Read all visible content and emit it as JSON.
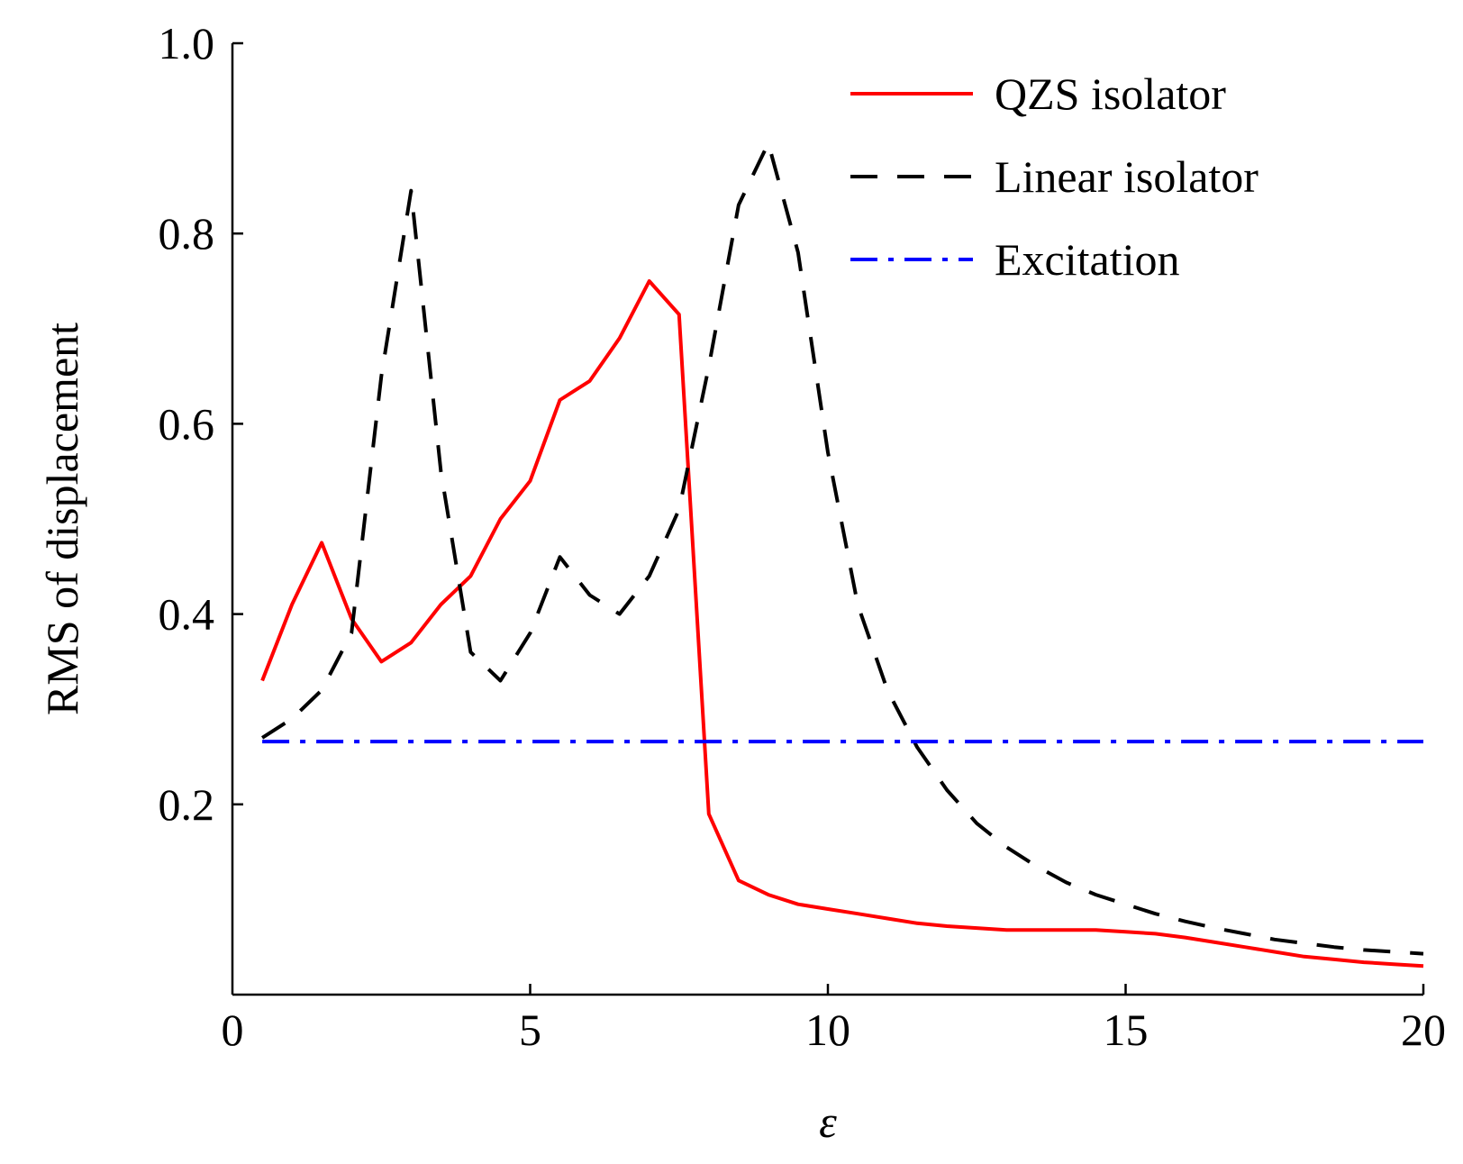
{
  "chart_data": {
    "type": "line",
    "title": "",
    "xlabel": "ε",
    "ylabel": "RMS of displacement",
    "xlim": [
      0,
      20
    ],
    "ylim": [
      0,
      1.0
    ],
    "xticks": [
      0,
      5,
      10,
      15,
      20
    ],
    "yticks": [
      0.2,
      0.4,
      0.6,
      0.8,
      1.0
    ],
    "xtick_labels": [
      "0",
      "5",
      "10",
      "15",
      "20"
    ],
    "ytick_labels": [
      "0.2",
      "0.4",
      "0.6",
      "0.8",
      "1.0"
    ],
    "grid": false,
    "legend_position": "top-right",
    "series": [
      {
        "name": "QZS isolator",
        "color": "#ff0000",
        "style": "solid",
        "x": [
          0.5,
          1.0,
          1.5,
          2.0,
          2.5,
          3.0,
          3.5,
          4.0,
          4.5,
          5.0,
          5.5,
          6.0,
          6.5,
          7.0,
          7.5,
          8.0,
          8.5,
          9.0,
          9.5,
          10.0,
          10.5,
          11.0,
          11.5,
          12.0,
          12.5,
          13.0,
          13.5,
          14.0,
          14.5,
          15.0,
          15.5,
          16.0,
          16.5,
          17.0,
          17.5,
          18.0,
          18.5,
          19.0,
          19.5,
          20.0
        ],
        "y": [
          0.33,
          0.41,
          0.475,
          0.395,
          0.35,
          0.37,
          0.41,
          0.44,
          0.5,
          0.54,
          0.625,
          0.645,
          0.69,
          0.75,
          0.715,
          0.19,
          0.12,
          0.105,
          0.095,
          0.09,
          0.085,
          0.08,
          0.075,
          0.072,
          0.07,
          0.068,
          0.068,
          0.068,
          0.068,
          0.066,
          0.064,
          0.06,
          0.055,
          0.05,
          0.045,
          0.04,
          0.037,
          0.034,
          0.032,
          0.03
        ]
      },
      {
        "name": "Linear isolator",
        "color": "#000000",
        "style": "dashed",
        "x": [
          0.5,
          1.0,
          1.5,
          2.0,
          2.5,
          3.0,
          3.5,
          4.0,
          4.5,
          5.0,
          5.5,
          6.0,
          6.5,
          7.0,
          7.5,
          8.0,
          8.5,
          9.0,
          9.5,
          10.0,
          10.5,
          11.0,
          11.5,
          12.0,
          12.5,
          13.0,
          13.5,
          14.0,
          14.5,
          15.0,
          15.5,
          16.0,
          16.5,
          17.0,
          17.5,
          18.0,
          18.5,
          19.0,
          19.5,
          20.0
        ],
        "y": [
          0.27,
          0.29,
          0.32,
          0.38,
          0.65,
          0.845,
          0.55,
          0.36,
          0.33,
          0.38,
          0.46,
          0.42,
          0.4,
          0.44,
          0.51,
          0.66,
          0.83,
          0.895,
          0.78,
          0.57,
          0.41,
          0.32,
          0.26,
          0.215,
          0.18,
          0.155,
          0.135,
          0.118,
          0.105,
          0.095,
          0.085,
          0.077,
          0.07,
          0.064,
          0.058,
          0.054,
          0.05,
          0.047,
          0.045,
          0.043
        ]
      },
      {
        "name": "Excitation",
        "color": "#0000ff",
        "style": "dashdot",
        "x": [
          0.5,
          20.0
        ],
        "y": [
          0.266,
          0.266
        ]
      }
    ]
  }
}
